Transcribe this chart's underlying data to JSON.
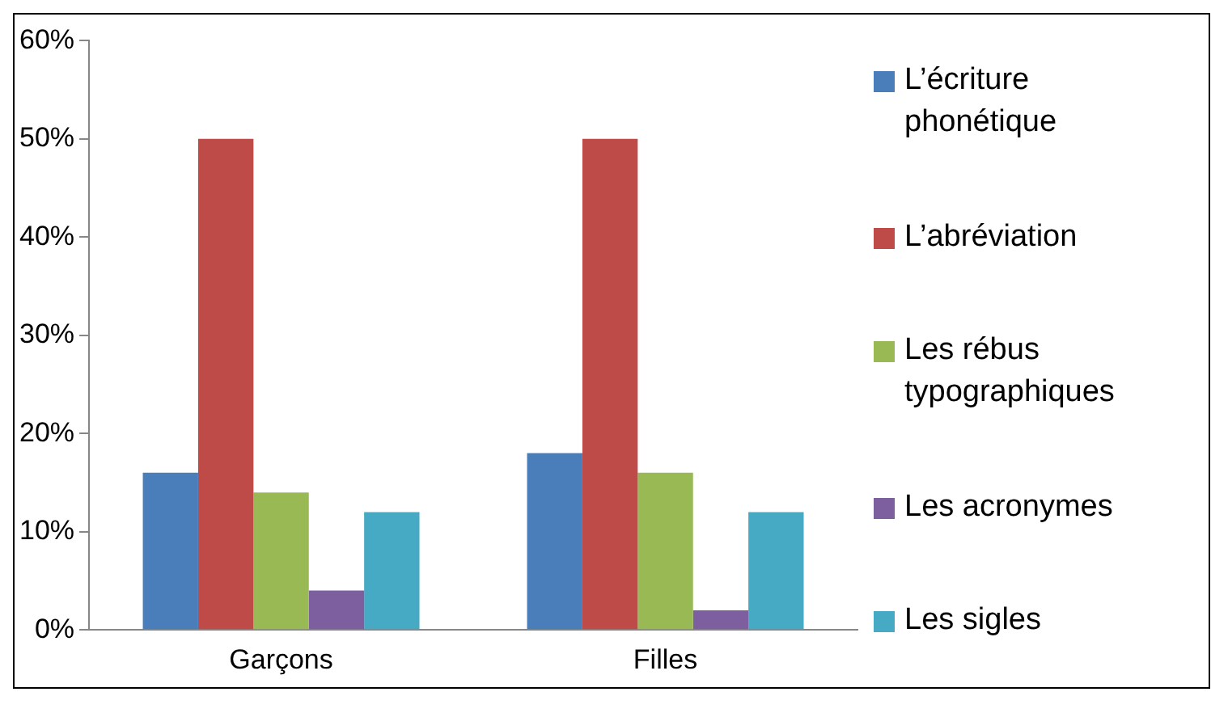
{
  "chart_data": {
    "type": "bar",
    "categories": [
      "Garçons",
      "Filles"
    ],
    "series": [
      {
        "name": "L’écriture phonétique",
        "color": "#4a7ebb",
        "values": [
          16,
          18
        ]
      },
      {
        "name": "L’abréviation",
        "color": "#be4b48",
        "values": [
          50,
          50
        ]
      },
      {
        "name": "Les rébus typographiques",
        "color": "#98b954",
        "values": [
          14,
          16
        ]
      },
      {
        "name": "Les acronymes",
        "color": "#7d5fa0",
        "values": [
          4,
          2
        ]
      },
      {
        "name": "Les sigles",
        "color": "#46aac5",
        "values": [
          12,
          12
        ]
      }
    ],
    "ylim": [
      0,
      60
    ],
    "yticks": [
      {
        "value": 0,
        "label": "0%"
      },
      {
        "value": 10,
        "label": "10%"
      },
      {
        "value": 20,
        "label": "20%"
      },
      {
        "value": 30,
        "label": "30%"
      },
      {
        "value": 40,
        "label": "40%"
      },
      {
        "value": 50,
        "label": "50%"
      },
      {
        "value": 60,
        "label": "60%"
      }
    ],
    "grid": false,
    "legend": "right"
  }
}
